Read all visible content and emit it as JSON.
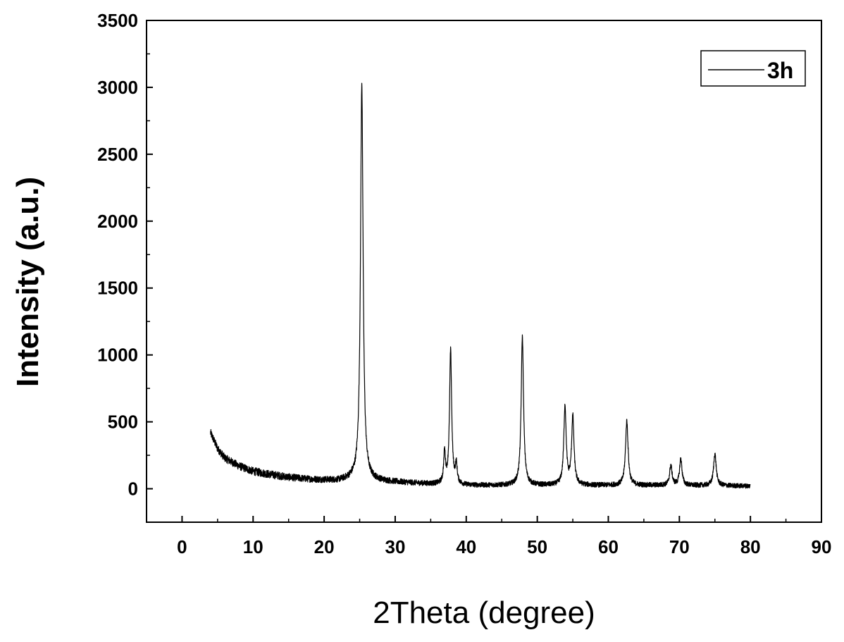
{
  "chart_data": {
    "type": "line",
    "xlabel": "2Theta (degree)",
    "ylabel": "Intensity (a.u.)",
    "xlim": [
      -5,
      90
    ],
    "ylim": [
      -250,
      3500
    ],
    "xticks": [
      0,
      10,
      20,
      30,
      40,
      50,
      60,
      70,
      80,
      90
    ],
    "yticks": [
      0,
      500,
      1000,
      1500,
      2000,
      2500,
      3000,
      3500
    ],
    "grid": false,
    "legend_position": "top-right",
    "background_amplitude": 60,
    "series": [
      {
        "name": "3h",
        "color": "#000000",
        "x_range": [
          4,
          80
        ],
        "baseline": [
          [
            4,
            420
          ],
          [
            5,
            300
          ],
          [
            6,
            230
          ],
          [
            8,
            170
          ],
          [
            10,
            130
          ],
          [
            12,
            110
          ],
          [
            15,
            85
          ],
          [
            18,
            70
          ],
          [
            22,
            60
          ],
          [
            24,
            70
          ],
          [
            27,
            60
          ],
          [
            30,
            50
          ],
          [
            35,
            35
          ],
          [
            40,
            25
          ],
          [
            50,
            25
          ],
          [
            60,
            25
          ],
          [
            70,
            25
          ],
          [
            80,
            20
          ]
        ],
        "peaks": [
          {
            "x": 25.3,
            "height": 2950,
            "width": 0.22
          },
          {
            "x": 36.95,
            "height": 230,
            "width": 0.15
          },
          {
            "x": 37.8,
            "height": 1000,
            "width": 0.18
          },
          {
            "x": 38.6,
            "height": 140,
            "width": 0.15
          },
          {
            "x": 47.9,
            "height": 1110,
            "width": 0.2
          },
          {
            "x": 53.9,
            "height": 590,
            "width": 0.2
          },
          {
            "x": 55.0,
            "height": 510,
            "width": 0.2
          },
          {
            "x": 62.6,
            "height": 480,
            "width": 0.22
          },
          {
            "x": 68.8,
            "height": 150,
            "width": 0.2
          },
          {
            "x": 70.2,
            "height": 200,
            "width": 0.2
          },
          {
            "x": 75.0,
            "height": 240,
            "width": 0.22
          }
        ]
      }
    ]
  }
}
